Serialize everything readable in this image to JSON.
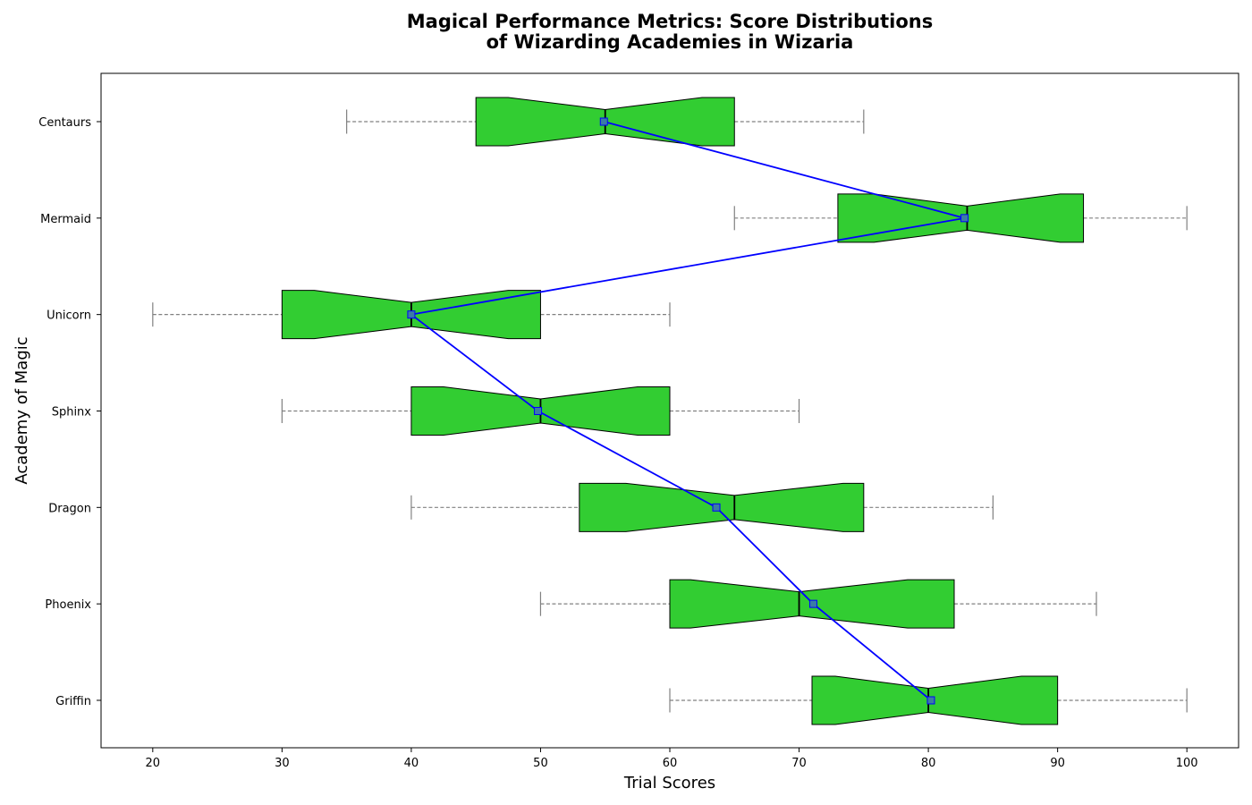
{
  "chart_data": {
    "type": "box",
    "orientation": "horizontal",
    "notched": true,
    "title_lines": [
      "Magical Performance Metrics: Score Distributions",
      "of Wizarding Academies in Wizaria"
    ],
    "xlabel": "Trial Scores",
    "ylabel": "Academy of Magic",
    "xlim": [
      16,
      104
    ],
    "xticks": [
      20,
      30,
      40,
      50,
      60,
      70,
      80,
      90,
      100
    ],
    "grid": false,
    "colors": {
      "box_fill": "#32cd32",
      "box_edge": "#000000",
      "whisker": "#808080",
      "mean_line": "#0000ff",
      "mean_marker": "#3a7ca5"
    },
    "categories": [
      "Centaurs",
      "Mermaid",
      "Unicorn",
      "Sphinx",
      "Dragon",
      "Phoenix",
      "Griffin"
    ],
    "boxes": [
      {
        "name": "Centaurs",
        "whislo": 35,
        "q1": 45,
        "med": 55,
        "q3": 65,
        "whishi": 75,
        "notch_lo": 47.5,
        "notch_hi": 62.5,
        "mean": 54.9
      },
      {
        "name": "Mermaid",
        "whislo": 65,
        "q1": 73,
        "med": 83,
        "q3": 92,
        "whishi": 100,
        "notch_lo": 75.8,
        "notch_hi": 90.2,
        "mean": 82.8
      },
      {
        "name": "Unicorn",
        "whislo": 20,
        "q1": 30,
        "med": 40,
        "q3": 50,
        "whishi": 60,
        "notch_lo": 32.5,
        "notch_hi": 47.5,
        "mean": 40.0
      },
      {
        "name": "Sphinx",
        "whislo": 30,
        "q1": 40,
        "med": 50,
        "q3": 60,
        "whishi": 70,
        "notch_lo": 42.5,
        "notch_hi": 57.5,
        "mean": 49.8
      },
      {
        "name": "Dragon",
        "whislo": 40,
        "q1": 53,
        "med": 65,
        "q3": 75,
        "whishi": 85,
        "notch_lo": 56.6,
        "notch_hi": 73.4,
        "mean": 63.6
      },
      {
        "name": "Phoenix",
        "whislo": 50,
        "q1": 60,
        "med": 70,
        "q3": 82,
        "whishi": 93,
        "notch_lo": 61.6,
        "notch_hi": 78.4,
        "mean": 71.1
      },
      {
        "name": "Griffin",
        "whislo": 60,
        "q1": 71,
        "med": 80,
        "q3": 90,
        "whishi": 100,
        "notch_lo": 72.8,
        "notch_hi": 87.2,
        "mean": 80.2
      }
    ]
  }
}
